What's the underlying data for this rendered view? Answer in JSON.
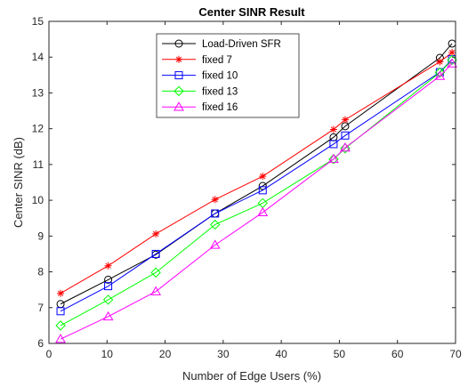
{
  "chart_data": {
    "type": "line",
    "title": "Center SINR Result",
    "xlabel": "Number of Edge Users (%)",
    "ylabel": "Center SINR (dB)",
    "xlim": [
      0,
      70
    ],
    "ylim": [
      6,
      15
    ],
    "xticks": [
      0,
      10,
      20,
      30,
      40,
      50,
      60,
      70
    ],
    "yticks": [
      6,
      7,
      8,
      9,
      10,
      11,
      12,
      13,
      14,
      15
    ],
    "grid": false,
    "legend_position": "top-center",
    "series": [
      {
        "name": "Load-Driven SFR",
        "color": "#000000",
        "marker": "circle",
        "x": [
          2,
          10.2,
          18.4,
          28.6,
          36.8,
          49,
          51,
          67.3,
          69.4
        ],
        "y": [
          7.1,
          7.78,
          8.48,
          9.63,
          10.4,
          11.76,
          12.07,
          13.98,
          14.38
        ]
      },
      {
        "name": "fixed 7",
        "color": "#ff0000",
        "marker": "asterisk",
        "x": [
          2,
          10.2,
          18.4,
          28.6,
          36.8,
          49,
          51,
          67.3,
          69.4
        ],
        "y": [
          7.4,
          8.17,
          9.06,
          10.02,
          10.67,
          11.98,
          12.25,
          13.87,
          14.13
        ]
      },
      {
        "name": "fixed 10",
        "color": "#0000ff",
        "marker": "square",
        "x": [
          2,
          10.2,
          18.4,
          28.6,
          36.8,
          49,
          51,
          67.3,
          69.4
        ],
        "y": [
          6.9,
          7.6,
          8.5,
          9.63,
          10.28,
          11.57,
          11.81,
          13.58,
          13.94
        ]
      },
      {
        "name": "fixed 13",
        "color": "#00ff00",
        "marker": "diamond",
        "x": [
          2,
          10.2,
          18.4,
          28.6,
          36.8,
          49,
          51,
          67.3,
          69.4
        ],
        "y": [
          6.5,
          7.22,
          7.98,
          9.32,
          9.92,
          11.15,
          11.45,
          13.57,
          13.92
        ]
      },
      {
        "name": "fixed 16",
        "color": "#ff00ff",
        "marker": "triangle",
        "x": [
          2,
          10.2,
          18.4,
          28.6,
          36.8,
          49,
          51,
          67.3,
          69.4
        ],
        "y": [
          6.12,
          6.75,
          7.45,
          8.75,
          9.66,
          11.15,
          11.47,
          13.47,
          13.82
        ]
      }
    ]
  }
}
